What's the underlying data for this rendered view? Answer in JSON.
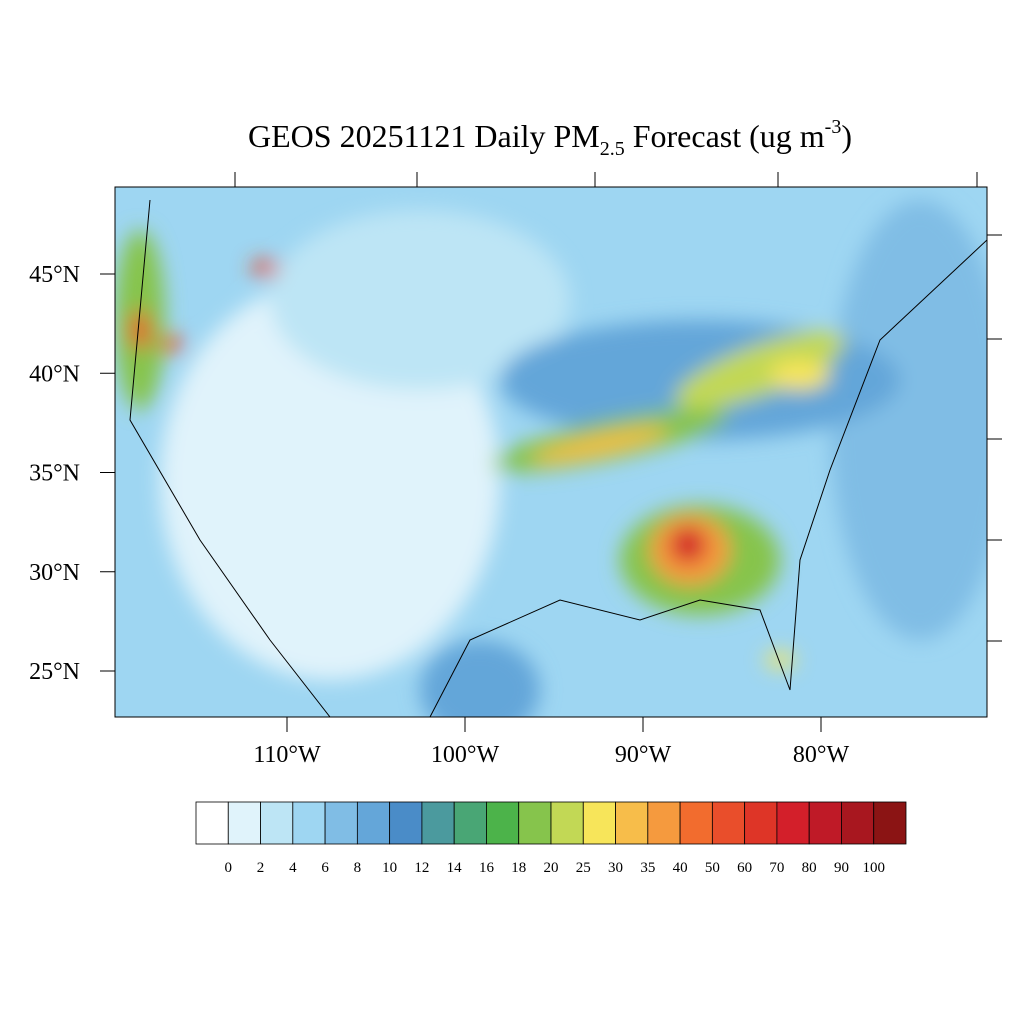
{
  "map": {
    "title": {
      "main": "GEOS 20251121 Daily PM",
      "subscript": "2.5",
      "middle": " Forecast (ug m",
      "superscript": "-3",
      "end": ")"
    },
    "lat_ticks": [
      {
        "value": 45,
        "label": "45°N"
      },
      {
        "value": 40,
        "label": "40°N"
      },
      {
        "value": 35,
        "label": "35°N"
      },
      {
        "value": 30,
        "label": "30°N"
      },
      {
        "value": 25,
        "label": "25°N"
      }
    ],
    "lon_ticks": [
      {
        "value": -110,
        "label": "110°W"
      },
      {
        "value": -100,
        "label": "100°W"
      },
      {
        "value": -90,
        "label": "90°W"
      },
      {
        "value": -80,
        "label": "80°W"
      }
    ],
    "colorbar": {
      "levels": [
        0,
        2,
        4,
        6,
        8,
        10,
        12,
        14,
        16,
        18,
        20,
        25,
        30,
        35,
        40,
        50,
        60,
        70,
        80,
        90,
        100
      ],
      "colors": [
        "#ffffff",
        "#e0f3fb",
        "#bde5f5",
        "#9ed6f2",
        "#80bde5",
        "#64a6d9",
        "#4a8cc8",
        "#4b9a9e",
        "#49a675",
        "#4cb34a",
        "#86c44c",
        "#c2d855",
        "#f7e55a",
        "#f7bd4a",
        "#f59a3e",
        "#f26c2e",
        "#e94e2b",
        "#de3527",
        "#d31f2a",
        "#bf1a27",
        "#a8171f",
        "#8b1414"
      ]
    }
  }
}
